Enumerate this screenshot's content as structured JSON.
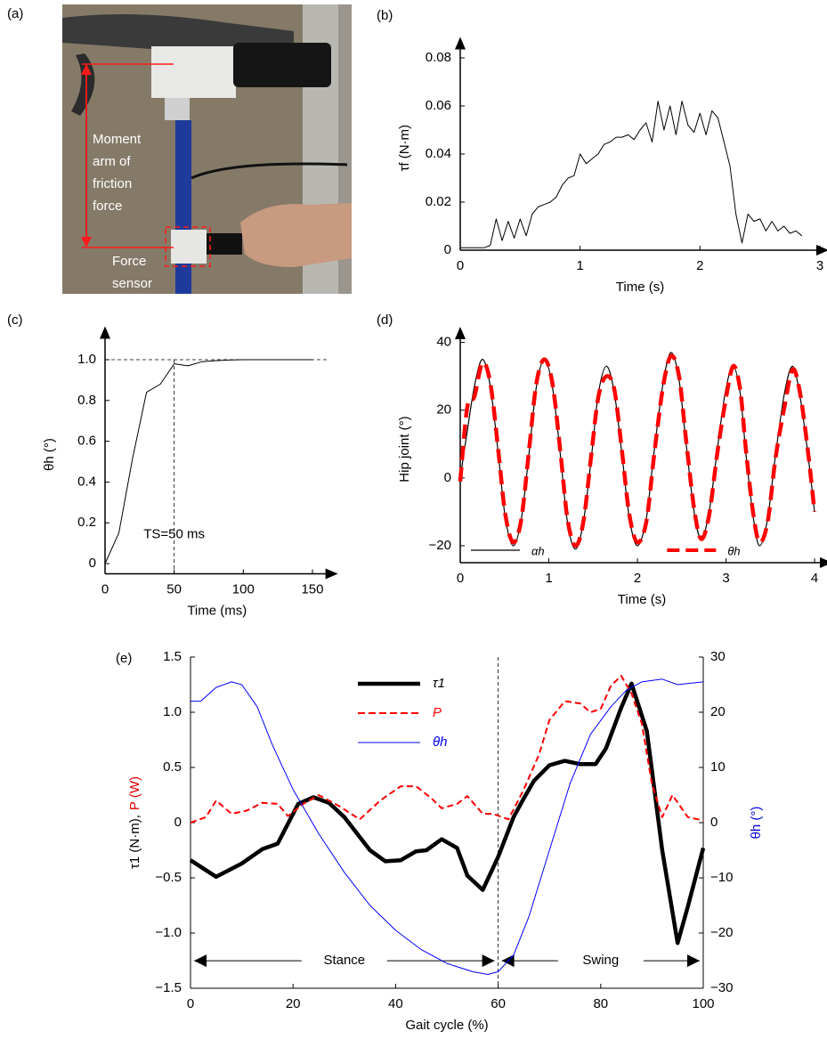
{
  "photo": {
    "panel_label": "(a)",
    "moment_arm_label": [
      "Moment",
      "arm of",
      "friction",
      "force"
    ],
    "sensor_label": [
      "Force",
      "sensor"
    ]
  },
  "chart_data": [
    {
      "type": "line",
      "panel_label": "(b)",
      "xlabel": "Time (s)",
      "ylabel": "τf (N·m)",
      "axis_arrows": true,
      "x": [
        0,
        0.05,
        0.1,
        0.15,
        0.2,
        0.25,
        0.3,
        0.35,
        0.4,
        0.45,
        0.5,
        0.55,
        0.6,
        0.65,
        0.7,
        0.75,
        0.8,
        0.85,
        0.9,
        0.95,
        1,
        1.05,
        1.1,
        1.15,
        1.2,
        1.25,
        1.3,
        1.35,
        1.4,
        1.45,
        1.5,
        1.55,
        1.6,
        1.65,
        1.7,
        1.75,
        1.8,
        1.85,
        1.9,
        1.95,
        2,
        2.05,
        2.1,
        2.15,
        2.2,
        2.25,
        2.3,
        2.35,
        2.4,
        2.45,
        2.5,
        2.55,
        2.6,
        2.65,
        2.7,
        2.75,
        2.8,
        2.85
      ],
      "series": [
        {
          "color": "#000000",
          "linewidth": 1,
          "values": [
            0.001,
            0.001,
            0.001,
            0.001,
            0.001,
            0.002,
            0.013,
            0.004,
            0.012,
            0.005,
            0.013,
            0.006,
            0.015,
            0.018,
            0.019,
            0.02,
            0.022,
            0.027,
            0.03,
            0.031,
            0.04,
            0.036,
            0.038,
            0.04,
            0.044,
            0.045,
            0.047,
            0.047,
            0.048,
            0.046,
            0.05,
            0.053,
            0.045,
            0.062,
            0.05,
            0.06,
            0.048,
            0.062,
            0.052,
            0.049,
            0.057,
            0.048,
            0.058,
            0.055,
            0.045,
            0.035,
            0.015,
            0.003,
            0.015,
            0.012,
            0.013,
            0.008,
            0.012,
            0.008,
            0.01,
            0.007,
            0.008,
            0.006
          ]
        }
      ],
      "xlim": [
        0,
        3
      ],
      "xticks": [
        0,
        1,
        2,
        3
      ],
      "ylim": [
        0,
        0.085
      ],
      "yticks": [
        0,
        0.02,
        0.04,
        0.06,
        0.08
      ]
    },
    {
      "type": "line",
      "panel_label": "(c)",
      "xlabel": "Time (ms)",
      "ylabel": "θh (°)",
      "axis_arrows": true,
      "x": [
        0,
        10,
        20,
        30,
        40,
        50,
        55,
        60,
        70,
        80,
        90,
        100,
        150
      ],
      "series": [
        {
          "color": "#000000",
          "linewidth": 1,
          "values": [
            0,
            0.15,
            0.52,
            0.84,
            0.88,
            0.98,
            0.975,
            0.97,
            0.99,
            0.995,
            0.998,
            1,
            1
          ]
        }
      ],
      "reference_x": 50,
      "reference_y": 1,
      "annotation": "TS=50 ms",
      "xlim": [
        0,
        162
      ],
      "xticks": [
        0,
        50,
        100,
        150
      ],
      "ylim": [
        -0.05,
        1.12
      ],
      "yticks": [
        0,
        0.2,
        0.4,
        0.6,
        0.8,
        {
          "value": 1,
          "label": "1.0"
        }
      ]
    },
    {
      "type": "line",
      "panel_label": "(d)",
      "xlabel": "Time (s)",
      "ylabel": "Hip joint (°)",
      "axis_arrows": true,
      "legend": "lower",
      "smooth": true,
      "x": [
        0,
        0.08,
        0.16,
        0.25,
        0.34,
        0.43,
        0.51,
        0.6,
        0.69,
        0.78,
        0.86,
        0.95,
        1.04,
        1.13,
        1.21,
        1.3,
        1.39,
        1.48,
        1.56,
        1.65,
        1.74,
        1.83,
        1.91,
        2,
        2.1,
        2.19,
        2.29,
        2.38,
        2.47,
        2.55,
        2.64,
        2.72,
        2.81,
        2.9,
        2.99,
        3.08,
        3.16,
        3.23,
        3.31,
        3.38,
        3.47,
        3.56,
        3.66,
        3.75,
        3.83,
        3.92,
        4
      ],
      "series": [
        {
          "name": "αh",
          "color": "#000000",
          "linewidth": 1.2,
          "values": [
            0,
            14,
            27,
            35,
            27,
            7,
            -12,
            -20,
            -12,
            8,
            27,
            35,
            27,
            7,
            -13,
            -21,
            -13,
            6,
            25,
            33,
            25,
            6,
            -12,
            -20,
            -12,
            8,
            28,
            37,
            29,
            10,
            -10,
            -18,
            -10,
            8,
            25,
            33,
            25,
            6,
            -12,
            -20,
            -12,
            7,
            25,
            33,
            25,
            8,
            -10
          ]
        },
        {
          "name": "θh",
          "color": "#ff0000",
          "linewidth": 4.5,
          "dashed": true,
          "values": [
            -1,
            21,
            24,
            34,
            28,
            8,
            -11,
            -19,
            -12,
            9,
            28,
            35,
            28,
            8,
            -12,
            -20,
            -13,
            7,
            24,
            30,
            26,
            7,
            -11,
            -19,
            -13,
            7,
            27,
            36,
            30,
            11,
            -9,
            -18,
            -11,
            7,
            22,
            33,
            26,
            7,
            -11,
            -19,
            -13,
            6,
            21,
            32,
            26,
            9,
            -10
          ]
        }
      ],
      "xlim": [
        0,
        4.1
      ],
      "xticks": [
        0,
        1,
        2,
        3,
        4
      ],
      "ylim": [
        -25,
        42
      ],
      "yticks": [
        {
          "value": -20,
          "label": "−20"
        },
        0,
        20,
        40
      ]
    },
    {
      "type": "line",
      "panel_label": "(e)",
      "xlabel": "Gait cycle (%)",
      "legend": "upper center",
      "ylabel_parts": [
        {
          "text": "τ1 (N·m),",
          "color": "#000000"
        },
        {
          "text": "P (W)",
          "color": "#e00000"
        }
      ],
      "y2label": "θh (°)",
      "y2color": "#0000e0",
      "reference_x": 60,
      "phases": [
        {
          "label": "Stance",
          "start": 0,
          "end": 60
        },
        {
          "label": "Swing",
          "start": 60,
          "end": 100
        }
      ],
      "series": [
        {
          "name": "τ1",
          "color": "#000000",
          "linewidth": 4.5,
          "x": [
            0,
            5,
            10,
            14,
            17,
            21,
            24,
            27,
            30,
            35,
            38,
            41,
            44,
            46,
            49,
            52,
            54,
            57,
            60,
            63,
            65,
            67,
            70,
            73,
            76,
            79,
            81,
            84,
            86,
            89,
            92,
            95,
            97,
            100
          ],
          "values": [
            -0.34,
            -0.49,
            -0.37,
            -0.24,
            -0.19,
            0.17,
            0.23,
            0.18,
            0.05,
            -0.25,
            -0.35,
            -0.34,
            -0.26,
            -0.25,
            -0.15,
            -0.23,
            -0.48,
            -0.61,
            -0.31,
            0.05,
            0.22,
            0.38,
            0.52,
            0.56,
            0.53,
            0.53,
            0.67,
            1.04,
            1.26,
            0.83,
            -0.25,
            -1.09,
            -0.76,
            -0.23
          ]
        },
        {
          "name": "P",
          "color": "#ff0000",
          "linewidth": 2,
          "dashed": true,
          "x": [
            0,
            3,
            5,
            8,
            11,
            14,
            17,
            19,
            22,
            25,
            29,
            33,
            37,
            41,
            44,
            47,
            49,
            52,
            54,
            57,
            59,
            62,
            65,
            68,
            70,
            73,
            76,
            78,
            80,
            82,
            84,
            86,
            88,
            90,
            92,
            94,
            97,
            100
          ],
          "values": [
            0,
            0.05,
            0.2,
            0.08,
            0.11,
            0.18,
            0.17,
            0.06,
            0.17,
            0.25,
            0.15,
            0.03,
            0.2,
            0.33,
            0.33,
            0.22,
            0.13,
            0.17,
            0.24,
            0.08,
            0.08,
            0.03,
            0.3,
            0.62,
            0.93,
            1.1,
            1.08,
            1,
            1.03,
            1.24,
            1.33,
            1.17,
            0.9,
            0.35,
            0.05,
            0.25,
            0.05,
            0.02
          ]
        },
        {
          "name": "θh",
          "color": "#0000ff",
          "linewidth": 1,
          "axis": "y2",
          "x": [
            0,
            2,
            5,
            8,
            10,
            13,
            16,
            20,
            25,
            30,
            35,
            40,
            45,
            50,
            55,
            58,
            60,
            63,
            66,
            70,
            74,
            78,
            82,
            85,
            88,
            92,
            95,
            100
          ],
          "values": [
            22,
            22,
            24.5,
            25.5,
            25,
            21,
            14,
            6,
            -2,
            -9,
            -15,
            -19.5,
            -23,
            -25.5,
            -27,
            -27.5,
            -27,
            -24,
            -17,
            -5,
            7,
            16,
            21,
            24,
            25.5,
            26,
            25,
            25.5
          ]
        }
      ],
      "xlim": [
        0,
        100
      ],
      "xticks": [
        0,
        20,
        40,
        60,
        80,
        100
      ],
      "ylim": [
        -1.5,
        1.5
      ],
      "yticks": [
        {
          "value": -1.5,
          "label": "−1.5"
        },
        {
          "value": -1,
          "label": "−1.0"
        },
        {
          "value": -0.5,
          "label": "−0.5"
        },
        0,
        0.5,
        {
          "value": 1,
          "label": "1.0"
        },
        1.5
      ],
      "y2lim": [
        -30,
        30
      ],
      "y2ticks": [
        {
          "value": -30,
          "label": "−30"
        },
        {
          "value": -20,
          "label": "−20"
        },
        {
          "value": -10,
          "label": "−10"
        },
        0,
        10,
        20,
        30
      ]
    }
  ]
}
